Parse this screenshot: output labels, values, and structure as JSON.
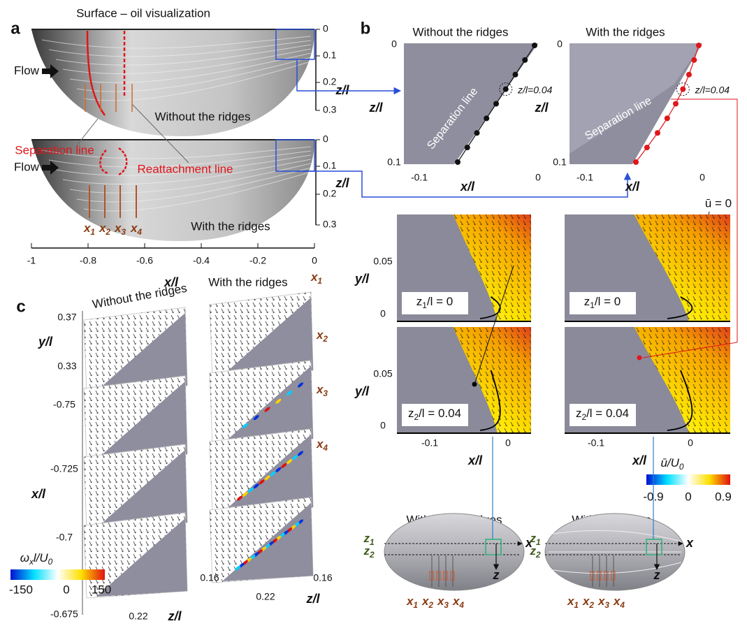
{
  "panel_a": {
    "label": "a",
    "title": "Surface – oil visualization",
    "flow_top": "Flow",
    "flow_bottom": "Flow",
    "separation_line": "Separation line",
    "reattachment_line": "Reattachment line",
    "caption_top": "Without the ridges",
    "caption_bottom": "With the ridges",
    "z_label_top": "z/l",
    "z_ticks_top": [
      "0",
      "0.1",
      "0.2",
      "0.3"
    ],
    "z_label_bottom": "z/l",
    "z_ticks_bottom": [
      "0",
      "0.1",
      "0.2",
      "0.3"
    ],
    "x_label": "x/l",
    "x_ticks": [
      "-1",
      "-0.8",
      "-0.6",
      "-0.4",
      "-0.2",
      "0"
    ],
    "stations": [
      [
        "x",
        "1"
      ],
      [
        "x",
        "2"
      ],
      [
        "x",
        "3"
      ],
      [
        "x",
        "4"
      ]
    ]
  },
  "panel_b": {
    "label": "b",
    "top": [
      {
        "title": "Without the ridges",
        "separation": "Separation line",
        "marker": "z/l=0.04",
        "z_label": "z/l",
        "z_ticks": [
          "0",
          "0.1"
        ],
        "x_label": "x/l",
        "x_ticks": [
          "-0.1",
          "0"
        ]
      },
      {
        "title": "With the ridges",
        "separation": "Separation line",
        "marker": "z/l=0.04",
        "z_label": "z/l",
        "z_ticks": [
          "0",
          "0.1"
        ],
        "x_label": "x/l",
        "x_ticks": [
          "-0.1",
          "0"
        ]
      }
    ],
    "velocity": {
      "titles": [
        "Without the ridges",
        "With the ridges"
      ],
      "zero_contour": "ū = 0",
      "rows": [
        {
          "plane": [
            "z",
            "1",
            "/l = 0"
          ],
          "y_label": "y/l",
          "y_ticks": [
            "0.05",
            "0"
          ]
        },
        {
          "plane": [
            "z",
            "2",
            "/l = 0.04"
          ],
          "y_label": "y/l",
          "y_ticks": [
            "0.05",
            "0"
          ]
        }
      ],
      "x_axes": [
        {
          "label": "x/l",
          "ticks": [
            "-0.1",
            "0"
          ]
        },
        {
          "label": "x/l",
          "ticks": [
            "-0.1",
            "0"
          ]
        }
      ],
      "colorbar": {
        "label": [
          "ū/U",
          "0"
        ],
        "ticks": [
          "-0.9",
          "0",
          "0.9"
        ]
      }
    },
    "bodies": [
      {
        "title": "Without the ridges",
        "z_planes": [
          [
            "z",
            "1"
          ],
          [
            "z",
            "2"
          ]
        ],
        "x_axis": "x",
        "z_axis": "z",
        "stations": [
          [
            "x",
            "1"
          ],
          [
            "x",
            "2"
          ],
          [
            "x",
            "3"
          ],
          [
            "x",
            "4"
          ]
        ]
      },
      {
        "title": "With the ridges",
        "z_planes": [
          [
            "z",
            "1"
          ],
          [
            "z",
            "2"
          ]
        ],
        "x_axis": "x",
        "z_axis": "z",
        "stations": [
          [
            "x",
            "1"
          ],
          [
            "x",
            "2"
          ],
          [
            "x",
            "3"
          ],
          [
            "x",
            "4"
          ]
        ]
      }
    ]
  },
  "panel_c": {
    "label": "c",
    "title_left": "Without the ridges",
    "title_right": "With the ridges",
    "slice_stations": [
      [
        "x",
        "1"
      ],
      [
        "x",
        "2"
      ],
      [
        "x",
        "3"
      ],
      [
        "x",
        "4"
      ]
    ],
    "y_label": "y/l",
    "y_ticks": [
      "0.37",
      "0.33"
    ],
    "x_label": "x/l",
    "x_ticks": [
      "-0.75",
      "-0.725",
      "-0.7",
      "-0.675"
    ],
    "z_axes": [
      {
        "ticks": [
          "0.22",
          "0.16"
        ],
        "label": "z/l"
      },
      {
        "ticks": [
          "0.22",
          "0.16"
        ],
        "label": "z/l"
      }
    ],
    "colorbar": {
      "label": [
        "ω",
        "x",
        "l/U",
        "0"
      ],
      "ticks": [
        "-150",
        "0",
        "150"
      ]
    }
  }
}
